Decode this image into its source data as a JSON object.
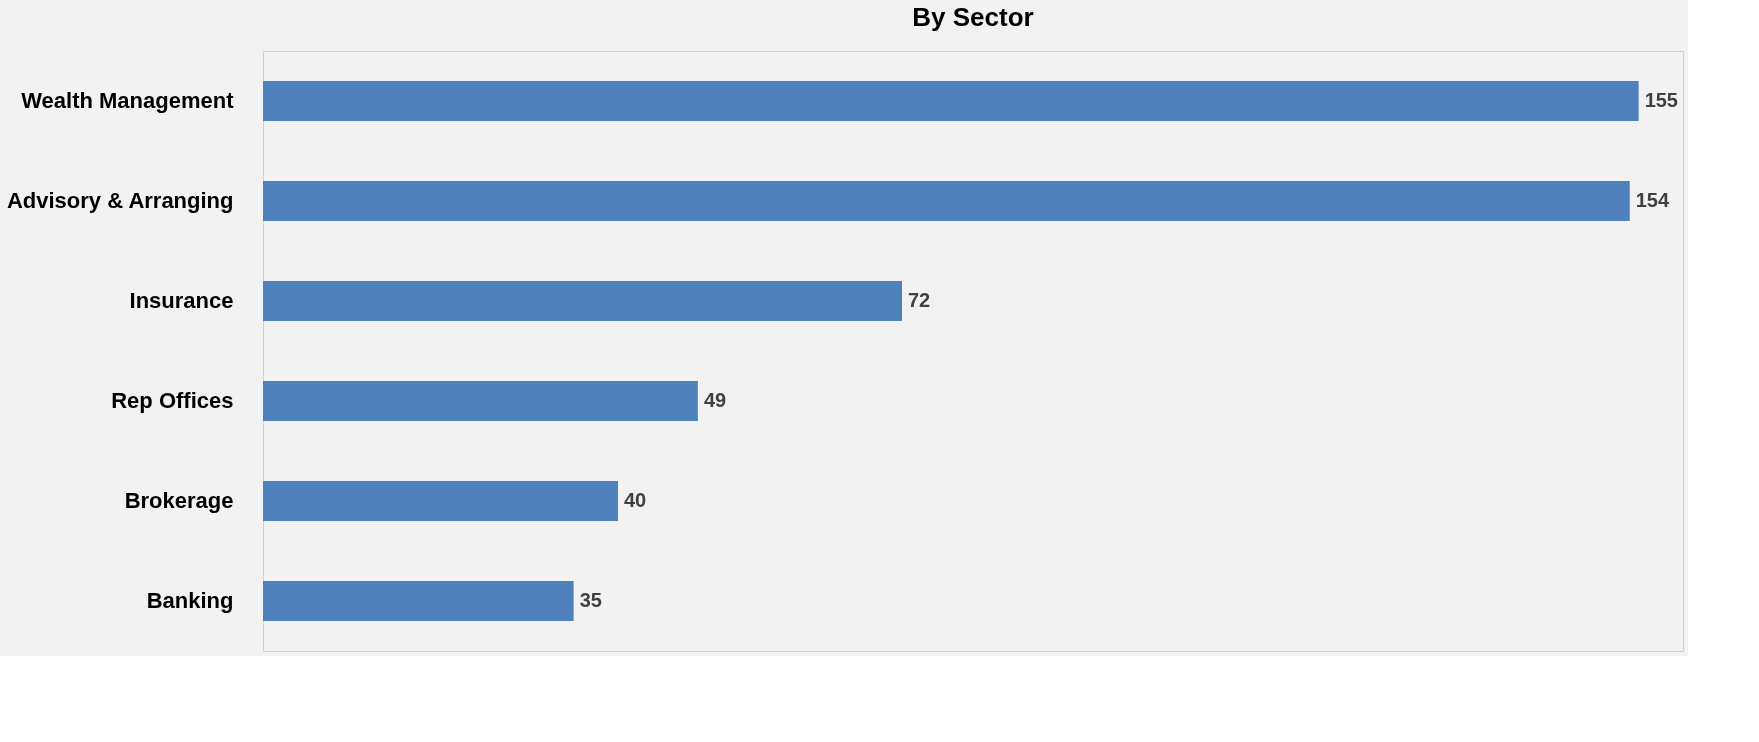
{
  "chart_data": {
    "type": "bar",
    "orientation": "horizontal",
    "title": "By Sector",
    "categories": [
      "Wealth Management",
      "Advisory & Arranging",
      "Insurance",
      "Rep Offices",
      "Brokerage",
      "Banking"
    ],
    "values": [
      155,
      154,
      72,
      49,
      40,
      35
    ],
    "color": "#4f81bd",
    "xlim": [
      0,
      160
    ],
    "data_labels": true,
    "grid": false
  }
}
